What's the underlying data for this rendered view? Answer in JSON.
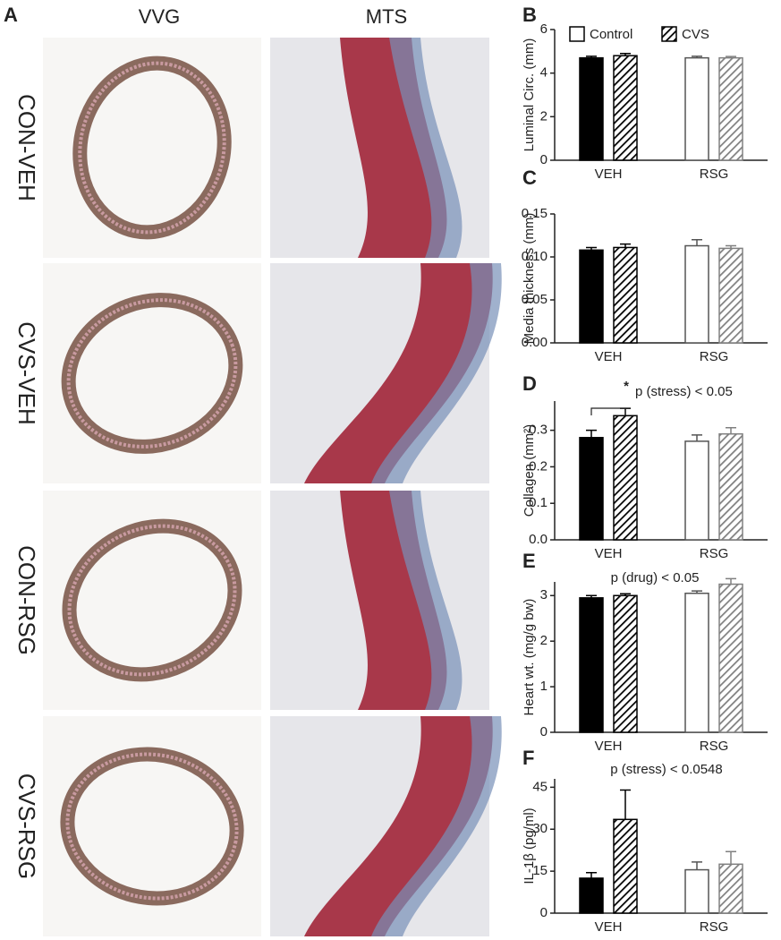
{
  "panel_a": {
    "label": "A",
    "columns": [
      "VVG",
      "MTS"
    ],
    "rows": [
      "CON-VEH",
      "CVS-VEH",
      "CON-RSG",
      "CVS-RSG"
    ]
  },
  "chart_data": [
    {
      "type": "bar",
      "label": "B",
      "ylabel": "Luminal Circ. (mm)",
      "categories": [
        "VEH",
        "RSG"
      ],
      "ylim": [
        0,
        6
      ],
      "yticks": [
        0,
        2,
        4,
        6
      ],
      "legend": "top",
      "series": [
        {
          "name": "Control",
          "colors": [
            "#000000",
            "#ffffff"
          ],
          "values": [
            4.7,
            4.7
          ],
          "errors": [
            0.07,
            0.07
          ]
        },
        {
          "name": "CVS",
          "colors": [
            "#000000",
            "#808080"
          ],
          "hatch": true,
          "values": [
            4.8,
            4.7
          ],
          "errors": [
            0.1,
            0.06
          ]
        }
      ]
    },
    {
      "type": "bar",
      "label": "C",
      "ylabel": "Media thickness (mm)",
      "categories": [
        "VEH",
        "RSG"
      ],
      "ylim": [
        0,
        0.15
      ],
      "yticks": [
        {
          "value": 0,
          "label": "0.00"
        },
        0.05,
        {
          "value": 0.1,
          "label": "0.10"
        },
        0.15
      ],
      "series": [
        {
          "colors": [
            "#000000",
            "#ffffff"
          ],
          "values": [
            0.108,
            0.113
          ],
          "errors": [
            0.003,
            0.007
          ]
        },
        {
          "colors": [
            "#000000",
            "#808080"
          ],
          "hatch": true,
          "values": [
            0.111,
            0.11
          ],
          "errors": [
            0.004,
            0.003
          ]
        }
      ]
    },
    {
      "type": "bar",
      "label": "D",
      "ylabel": "Collagen (mm²)",
      "categories": [
        "VEH",
        "RSG"
      ],
      "ylim": [
        0,
        0.38
      ],
      "yticks": [
        {
          "value": 0,
          "label": "0.0"
        },
        0.1,
        0.2,
        0.3
      ],
      "annotations": [
        "*",
        "p (stress) < 0.05"
      ],
      "series": [
        {
          "colors": [
            "#000000",
            "#ffffff"
          ],
          "values": [
            0.28,
            0.27
          ],
          "errors": [
            0.02,
            0.017
          ]
        },
        {
          "colors": [
            "#000000",
            "#808080"
          ],
          "hatch": true,
          "values": [
            0.34,
            0.29
          ],
          "errors": [
            0.02,
            0.017
          ]
        }
      ]
    },
    {
      "type": "bar",
      "label": "E",
      "ylabel": "Heart wt. (mg/g bw)",
      "categories": [
        "VEH",
        "RSG"
      ],
      "ylim": [
        0,
        3.3
      ],
      "yticks": [
        0,
        1,
        2,
        3
      ],
      "annotations": [
        "p (drug) < 0.05"
      ],
      "series": [
        {
          "colors": [
            "#000000",
            "#ffffff"
          ],
          "values": [
            2.95,
            3.05
          ],
          "errors": [
            0.05,
            0.05
          ]
        },
        {
          "colors": [
            "#000000",
            "#808080"
          ],
          "hatch": true,
          "values": [
            3.0,
            3.25
          ],
          "errors": [
            0.04,
            0.12
          ]
        }
      ]
    },
    {
      "type": "bar",
      "label": "F",
      "ylabel": "IL-1β (pg/ml)",
      "categories": [
        "VEH",
        "RSG"
      ],
      "ylim": [
        0,
        48
      ],
      "yticks": [
        0,
        15,
        30,
        45
      ],
      "annotations": [
        "p (stress) < 0.0548"
      ],
      "series": [
        {
          "colors": [
            "#000000",
            "#ffffff"
          ],
          "values": [
            12.5,
            15.5
          ],
          "errors": [
            2,
            2.8
          ]
        },
        {
          "colors": [
            "#000000",
            "#808080"
          ],
          "hatch": true,
          "values": [
            33.5,
            17.5
          ],
          "errors": [
            10.5,
            4.5
          ]
        }
      ]
    }
  ]
}
